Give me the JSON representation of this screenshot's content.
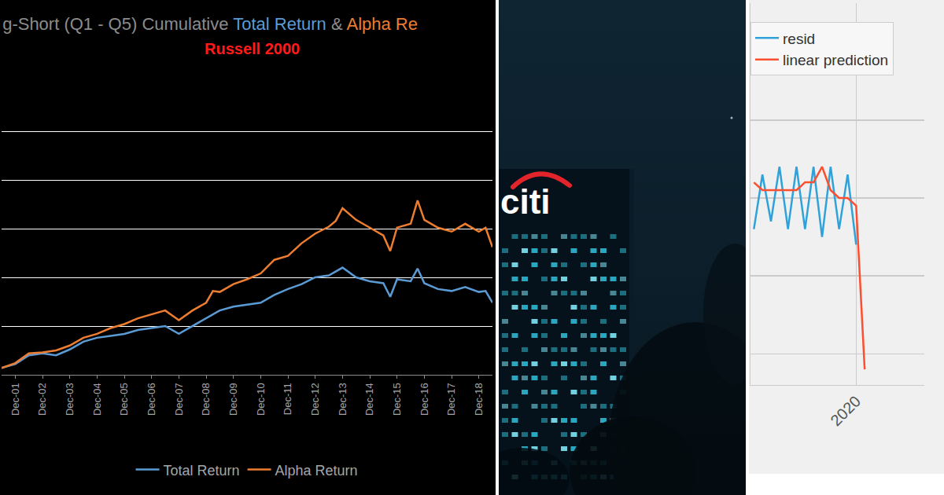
{
  "chart_data": [
    {
      "type": "line",
      "title": "g-Short (Q1 - Q5) Cumulative Total Return & Alpha Re",
      "subtitle": "Russell 2000",
      "x": [
        "2001-06",
        "2001-12",
        "2002-06",
        "2002-12",
        "2003-06",
        "2003-12",
        "2004-06",
        "2004-12",
        "2005-06",
        "2005-12",
        "2006-06",
        "2006-12",
        "2007-06",
        "2007-12",
        "2008-06",
        "2008-12",
        "2009-03",
        "2009-06",
        "2009-12",
        "2010-06",
        "2010-12",
        "2011-06",
        "2011-12",
        "2012-06",
        "2012-12",
        "2013-06",
        "2013-09",
        "2013-12",
        "2014-06",
        "2014-12",
        "2015-06",
        "2015-09",
        "2015-12",
        "2016-06",
        "2016-09",
        "2016-12",
        "2017-06",
        "2017-12",
        "2018-06",
        "2018-12",
        "2019-03",
        "2019-06"
      ],
      "series": [
        {
          "name": "Total Return",
          "color": "#5b9bd5",
          "values": [
            7,
            11,
            20,
            22,
            20,
            26,
            34,
            38,
            40,
            42,
            46,
            48,
            50,
            42,
            50,
            58,
            62,
            66,
            70,
            72,
            74,
            82,
            88,
            93,
            100,
            102,
            106,
            110,
            100,
            96,
            94,
            80,
            98,
            96,
            109,
            94,
            88,
            86,
            90,
            85,
            86,
            74
          ]
        },
        {
          "name": "Alpha Return",
          "color": "#ed7d31",
          "values": [
            7,
            12,
            22,
            23,
            25,
            30,
            38,
            42,
            48,
            52,
            58,
            62,
            66,
            56,
            66,
            74,
            86,
            85,
            93,
            98,
            104,
            118,
            122,
            135,
            145,
            152,
            158,
            171,
            159,
            151,
            143,
            127,
            151,
            155,
            179,
            159,
            151,
            147,
            155,
            147,
            151,
            131
          ]
        }
      ],
      "xlim": [
        "2001-06",
        "2019-06"
      ],
      "xticks": [
        {
          "value": "2001-12",
          "label": "Dec-01"
        },
        {
          "value": "2002-12",
          "label": "Dec-02"
        },
        {
          "value": "2003-12",
          "label": "Dec-03"
        },
        {
          "value": "2004-12",
          "label": "Dec-04"
        },
        {
          "value": "2005-12",
          "label": "Dec-05"
        },
        {
          "value": "2006-12",
          "label": "Dec-06"
        },
        {
          "value": "2007-12",
          "label": "Dec-07"
        },
        {
          "value": "2008-12",
          "label": "Dec-08"
        },
        {
          "value": "2009-12",
          "label": "Dec-09"
        },
        {
          "value": "2010-12",
          "label": "Dec-10"
        },
        {
          "value": "2011-12",
          "label": "Dec-11"
        },
        {
          "value": "2012-12",
          "label": "Dec-12"
        },
        {
          "value": "2013-12",
          "label": "Dec-13"
        },
        {
          "value": "2014-12",
          "label": "Dec-14"
        },
        {
          "value": "2015-12",
          "label": "Dec-15"
        },
        {
          "value": "2016-12",
          "label": "Dec-16"
        },
        {
          "value": "2017-12",
          "label": "Dec-17"
        },
        {
          "value": "2018-12",
          "label": "Dec-18"
        }
      ],
      "ylim": [
        0,
        300
      ],
      "yticks": [
        0,
        50,
        100,
        150,
        200,
        250,
        300
      ],
      "grid": "y",
      "legend": "bottom",
      "tick_labels": "x"
    },
    {
      "type": "line",
      "x": [
        2017,
        2017.25,
        2017.5,
        2017.75,
        2018,
        2018.25,
        2018.5,
        2018.75,
        2019,
        2019.25,
        2019.5,
        2019.75,
        2020,
        2020.25
      ],
      "series": [
        {
          "name": "resid",
          "color": "#30a2da",
          "values": [
            1.6,
            2.3,
            1.7,
            2.4,
            1.6,
            2.4,
            1.6,
            2.4,
            1.5,
            2.4,
            1.6,
            2.3,
            1.4,
            null
          ]
        },
        {
          "name": "linear prediction",
          "color": "#fc4f30",
          "values": [
            2.2,
            2.1,
            2.1,
            2.1,
            2.1,
            2.1,
            2.2,
            2.2,
            2.4,
            2.1,
            2.0,
            2.0,
            1.9,
            -0.2
          ]
        }
      ],
      "xlim": [
        2016.9,
        2022
      ],
      "xticks": [
        2020
      ],
      "ylim": [
        -0.4,
        4.5
      ],
      "yticks": [
        0,
        1,
        2,
        3
      ],
      "grid": true,
      "legend": "top left",
      "tick_labels": "x"
    }
  ],
  "photo": {
    "logo": "citi"
  }
}
